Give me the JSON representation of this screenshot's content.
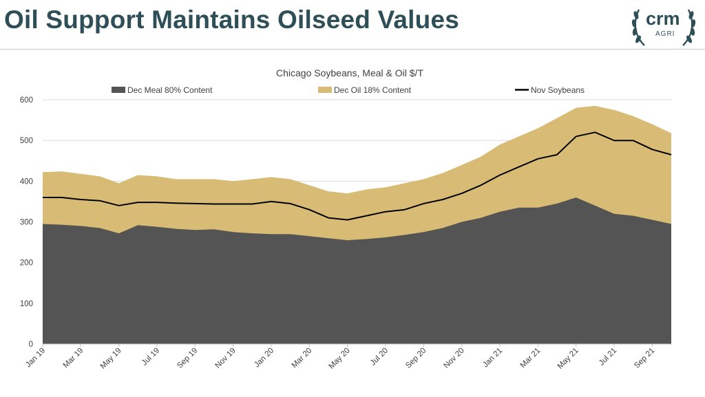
{
  "slide": {
    "title": "Oil Support Maintains Oilseed Values",
    "logo_main": "crm",
    "logo_sub": "AGRI"
  },
  "colors": {
    "meal": "#545454",
    "oil": "#d8bc76",
    "soybeans": "#000000",
    "title": "#2f4f58"
  },
  "chart_data": {
    "type": "area",
    "title": "Chicago Soybeans, Meal & Oil $/T",
    "legend_position": "top",
    "grid": "horizontal",
    "ylim": [
      0,
      600
    ],
    "yticks": [
      0,
      100,
      200,
      300,
      400,
      500,
      600
    ],
    "x_tick_labels": [
      "Jan 19",
      "Mar 19",
      "May 19",
      "Jul 19",
      "Sep 19",
      "Nov 19",
      "Jan 20",
      "Mar 20",
      "May 20",
      "Jul 20",
      "Sep 20",
      "Nov 20",
      "Jan 21",
      "Mar 21",
      "May 21",
      "Jul 21",
      "Sep 21"
    ],
    "x_months": [
      "Jan 19",
      "Feb 19",
      "Mar 19",
      "Apr 19",
      "May 19",
      "Jun 19",
      "Jul 19",
      "Aug 19",
      "Sep 19",
      "Oct 19",
      "Nov 19",
      "Dec 19",
      "Jan 20",
      "Feb 20",
      "Mar 20",
      "Apr 20",
      "May 20",
      "Jun 20",
      "Jul 20",
      "Aug 20",
      "Sep 20",
      "Oct 20",
      "Nov 20",
      "Dec 20",
      "Jan 21",
      "Feb 21",
      "Mar 21",
      "Apr 21",
      "May 21",
      "Jun 21",
      "Jul 21",
      "Aug 21",
      "Sep 21",
      "Oct 21"
    ],
    "series": [
      {
        "name": "Dec Meal 80% Content",
        "kind": "area",
        "values": [
          295,
          293,
          290,
          285,
          272,
          292,
          288,
          283,
          280,
          282,
          275,
          272,
          270,
          270,
          265,
          260,
          255,
          258,
          262,
          268,
          275,
          285,
          300,
          310,
          325,
          335,
          335,
          345,
          360,
          340,
          320,
          315,
          305,
          295
        ]
      },
      {
        "name": "Dec Oil 18% Content",
        "kind": "stacked-area-top",
        "values": [
          422,
          424,
          418,
          412,
          395,
          415,
          412,
          405,
          405,
          405,
          400,
          405,
          410,
          405,
          390,
          375,
          370,
          380,
          385,
          395,
          405,
          420,
          440,
          460,
          490,
          510,
          530,
          555,
          580,
          585,
          575,
          560,
          540,
          518
        ]
      },
      {
        "name": "Nov Soybeans",
        "kind": "line",
        "values": [
          360,
          360,
          355,
          352,
          340,
          348,
          348,
          346,
          345,
          344,
          344,
          344,
          350,
          345,
          330,
          310,
          305,
          315,
          325,
          330,
          345,
          355,
          370,
          390,
          415,
          435,
          455,
          465,
          510,
          520,
          500,
          500,
          478,
          465
        ]
      }
    ]
  }
}
